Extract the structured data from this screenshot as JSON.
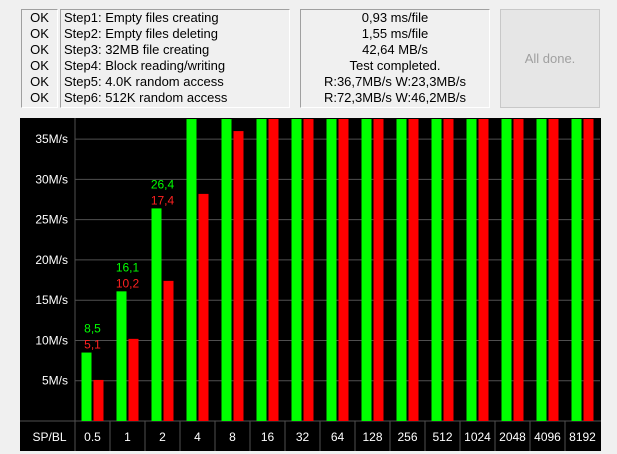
{
  "status": [
    "OK",
    "OK",
    "OK",
    "OK",
    "OK",
    "OK"
  ],
  "steps": [
    "Step1: Empty files creating",
    "Step2: Empty files deleting",
    "Step3: 32MB file creating",
    "Step4: Block reading/writing",
    "Step5: 4.0K random access",
    "Step6: 512K random access"
  ],
  "results": [
    "0,93 ms/file",
    "1,55 ms/file",
    "42,64 MB/s",
    "Test completed.",
    "R:36,7MB/s W:23,3MB/s",
    "R:72,3MB/s W:46,2MB/s"
  ],
  "done_label": "All done.",
  "chart_data": {
    "type": "bar",
    "xlabel": "SP/BL",
    "categories": [
      "0.5",
      "1",
      "2",
      "4",
      "8",
      "16",
      "32",
      "64",
      "128",
      "256",
      "512",
      "1024",
      "2048",
      "4096",
      "8192"
    ],
    "series": [
      {
        "color": "#00ff00",
        "values": [
          8.5,
          16.1,
          26.4,
          37.5,
          37.5,
          37.5,
          37.5,
          37.5,
          37.5,
          37.5,
          37.5,
          37.5,
          37.5,
          37.5,
          37.5
        ]
      },
      {
        "color": "#ff0000",
        "values": [
          5.1,
          10.2,
          17.4,
          28.2,
          36.0,
          37.5,
          37.5,
          37.5,
          37.5,
          37.5,
          37.5,
          37.5,
          37.5,
          37.5,
          37.5
        ]
      }
    ],
    "data_labels": [
      {
        "category": "0.5",
        "green": "8,5",
        "red": "5,1"
      },
      {
        "category": "1",
        "green": "16,1",
        "red": "10,2"
      },
      {
        "category": "2",
        "green": "26,4",
        "red": "17,4"
      }
    ],
    "yticks": [
      {
        "value": 5,
        "label": "5M/s"
      },
      {
        "value": 10,
        "label": "10M/s"
      },
      {
        "value": 15,
        "label": "15M/s"
      },
      {
        "value": 20,
        "label": "20M/s"
      },
      {
        "value": 25,
        "label": "25M/s"
      },
      {
        "value": 30,
        "label": "30M/s"
      },
      {
        "value": 35,
        "label": "35M/s"
      }
    ],
    "ylim": [
      0,
      37.5
    ],
    "grid": true,
    "colors": {
      "background": "#000000",
      "grid": "#505050",
      "text": "#ffffff",
      "green_label": "#00ff00",
      "red_label": "#ff2020"
    }
  }
}
